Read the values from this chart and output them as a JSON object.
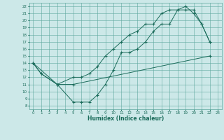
{
  "xlabel": "Humidex (Indice chaleur)",
  "background_color": "#cce8e8",
  "grid_color": "#5fa8a0",
  "line_color": "#1a6b5a",
  "xlim": [
    -0.5,
    23.5
  ],
  "ylim": [
    7.5,
    22.5
  ],
  "xticks": [
    0,
    1,
    2,
    3,
    4,
    5,
    6,
    7,
    8,
    9,
    10,
    11,
    12,
    13,
    14,
    15,
    16,
    17,
    18,
    19,
    20,
    21,
    22,
    23
  ],
  "yticks": [
    8,
    9,
    10,
    11,
    12,
    13,
    14,
    15,
    16,
    17,
    18,
    19,
    20,
    21,
    22
  ],
  "line1_x": [
    0,
    1,
    3,
    5,
    6,
    7,
    8,
    9,
    10,
    11,
    12,
    13,
    14,
    15,
    16,
    17,
    18,
    19,
    20,
    21,
    22
  ],
  "line1_y": [
    14,
    12.5,
    11,
    8.5,
    8.5,
    8.5,
    9.5,
    11,
    13,
    15.5,
    15.5,
    16,
    17,
    18.5,
    19.5,
    19.5,
    21.5,
    21.5,
    21.5,
    19.5,
    17
  ],
  "line2_x": [
    0,
    3,
    5,
    6,
    7,
    8,
    9,
    10,
    11,
    12,
    13,
    14,
    15,
    16,
    17,
    18,
    19,
    20,
    21,
    22
  ],
  "line2_y": [
    14,
    11,
    12,
    12,
    12.5,
    13.5,
    15,
    16,
    17,
    18,
    18.5,
    19.5,
    19.5,
    21,
    21.5,
    21.5,
    22,
    21,
    19.5,
    17
  ],
  "line3_x": [
    0,
    1,
    3,
    5,
    22
  ],
  "line3_y": [
    14,
    12.5,
    11,
    11,
    15
  ]
}
